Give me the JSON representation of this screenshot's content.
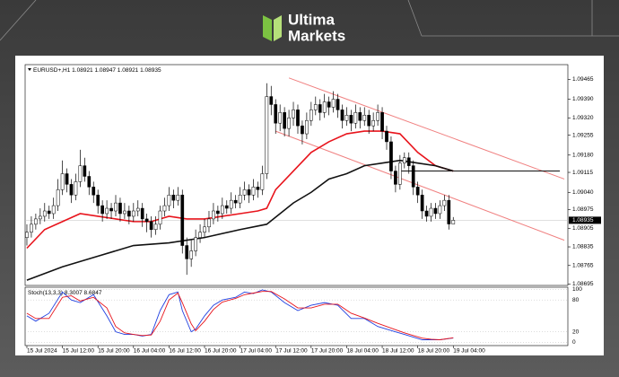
{
  "brand": {
    "line1": "Ultima",
    "line2": "Markets"
  },
  "chart_data": {
    "type": "candlestick",
    "title": "EURUSD+,H1",
    "x": [
      0,
      1,
      2,
      3,
      4,
      5,
      6,
      7,
      8,
      9,
      10,
      11,
      12,
      13,
      14,
      15,
      16,
      17,
      18,
      19,
      20,
      21,
      22,
      23,
      24,
      25,
      26,
      27,
      28,
      29,
      30,
      31,
      32,
      33,
      34,
      35,
      36,
      37,
      38,
      39,
      40,
      41,
      42,
      43,
      44,
      45,
      46,
      47,
      48,
      49,
      50,
      51,
      52,
      53,
      54,
      55,
      56,
      57,
      58,
      59,
      60,
      61,
      62,
      63,
      64,
      65,
      66,
      67,
      68,
      69,
      70,
      71,
      72,
      73,
      74,
      75,
      76,
      77,
      78,
      79,
      80,
      81,
      82,
      83,
      84,
      85,
      86,
      87,
      88,
      89,
      90,
      91,
      92,
      93,
      94,
      95,
      96
    ],
    "open": [
      1.0887,
      1.0889,
      1.0892,
      1.0894,
      1.0895,
      1.0897,
      1.0896,
      1.0899,
      1.0905,
      1.0911,
      1.0907,
      1.0903,
      1.0908,
      1.0914,
      1.091,
      1.0906,
      1.0903,
      1.0899,
      1.0896,
      1.0898,
      1.0897,
      1.09,
      1.0896,
      1.0897,
      1.0895,
      1.0897,
      1.0898,
      1.0894,
      1.0893,
      1.089,
      1.0892,
      1.0897,
      1.0899,
      1.0903,
      1.0901,
      1.0903,
      1.0884,
      1.0879,
      1.0882,
      1.0887,
      1.0889,
      1.0891,
      1.0894,
      1.0897,
      1.0896,
      1.0899,
      1.0898,
      1.0901,
      1.09,
      1.0903,
      1.0905,
      1.0903,
      1.0906,
      1.0905,
      1.0911,
      1.094,
      1.0937,
      1.093,
      1.0934,
      1.0928,
      1.0932,
      1.0935,
      1.0929,
      1.0926,
      1.0931,
      1.0935,
      1.0937,
      1.0934,
      1.0938,
      1.0936,
      1.0939,
      1.0935,
      1.0931,
      1.0933,
      1.093,
      1.0934,
      1.0931,
      1.0933,
      1.0929,
      1.0931,
      1.0934,
      1.0927,
      1.0923,
      1.0912,
      1.0907,
      1.0915,
      1.0917,
      1.0914,
      1.0906,
      1.0903,
      1.0897,
      1.0895,
      1.0898,
      1.0896,
      1.0899,
      1.0901,
      1.08921
    ],
    "high": [
      1.0892,
      1.0895,
      1.0896,
      1.0898,
      1.09,
      1.0899,
      1.0902,
      1.0909,
      1.0916,
      1.0913,
      1.0909,
      1.0911,
      1.092,
      1.0917,
      1.0912,
      1.0908,
      1.0905,
      1.0901,
      1.0901,
      1.09,
      1.0903,
      1.0902,
      1.09,
      1.0899,
      1.09,
      1.0901,
      1.09,
      1.0896,
      1.0895,
      1.0895,
      1.0899,
      1.0902,
      1.0906,
      1.0905,
      1.0906,
      1.0905,
      1.0887,
      1.0886,
      1.089,
      1.0892,
      1.0894,
      1.0897,
      1.09,
      1.0899,
      1.0902,
      1.0901,
      1.0904,
      1.0903,
      1.0906,
      1.0908,
      1.0907,
      1.0909,
      1.0908,
      1.0914,
      1.0945,
      1.0944,
      1.0939,
      1.0937,
      1.0936,
      1.0935,
      1.0938,
      1.0937,
      1.0931,
      1.0934,
      1.0938,
      1.094,
      1.0939,
      1.0941,
      1.094,
      1.0942,
      1.0941,
      1.0937,
      1.0936,
      1.0935,
      1.0937,
      1.0936,
      1.0936,
      1.0935,
      1.0934,
      1.0937,
      1.0936,
      1.0929,
      1.0925,
      1.0914,
      1.0918,
      1.0919,
      1.0919,
      1.0916,
      1.0908,
      1.0905,
      1.0899,
      1.09,
      1.09,
      1.0901,
      1.0903,
      1.0903,
      1.08947
    ],
    "low": [
      1.0884,
      1.0887,
      1.089,
      1.0892,
      1.0893,
      1.0894,
      1.0894,
      1.0897,
      1.0903,
      1.0904,
      1.09,
      1.0901,
      1.0906,
      1.0908,
      1.0903,
      1.09,
      1.0896,
      1.0893,
      1.0894,
      1.0894,
      1.0895,
      1.0893,
      1.0894,
      1.0892,
      1.0893,
      1.0895,
      1.0891,
      1.0889,
      1.0887,
      1.0888,
      1.089,
      1.0895,
      1.0897,
      1.0898,
      1.0899,
      1.0881,
      1.0873,
      1.0876,
      1.088,
      1.0885,
      1.0887,
      1.0889,
      1.0892,
      1.0893,
      1.0894,
      1.0896,
      1.0896,
      1.0898,
      1.0898,
      1.0901,
      1.09,
      1.0901,
      1.0902,
      1.0903,
      1.0909,
      1.0933,
      1.0926,
      1.0927,
      1.0925,
      1.0925,
      1.0929,
      1.0926,
      1.0922,
      1.0924,
      1.0929,
      1.0933,
      1.0931,
      1.0932,
      1.0933,
      1.0934,
      1.0932,
      1.0928,
      1.0929,
      1.0927,
      1.0928,
      1.0928,
      1.0929,
      1.0926,
      1.0927,
      1.0929,
      1.0924,
      1.092,
      1.0909,
      1.0904,
      1.0905,
      1.0913,
      1.0911,
      1.0903,
      1.09,
      1.0894,
      1.0893,
      1.0893,
      1.0894,
      1.0894,
      1.0897,
      1.089,
      1.08921
    ],
    "close": [
      1.0889,
      1.0892,
      1.0894,
      1.0895,
      1.0897,
      1.0896,
      1.0899,
      1.0905,
      1.0911,
      1.0907,
      1.0903,
      1.0908,
      1.0914,
      1.091,
      1.0906,
      1.0903,
      1.0899,
      1.0896,
      1.0898,
      1.0897,
      1.09,
      1.0896,
      1.0897,
      1.0895,
      1.0897,
      1.0898,
      1.0894,
      1.0893,
      1.089,
      1.0892,
      1.0897,
      1.0899,
      1.0903,
      1.0901,
      1.0903,
      1.0884,
      1.0879,
      1.0882,
      1.0887,
      1.0889,
      1.0891,
      1.0894,
      1.0897,
      1.0896,
      1.0899,
      1.0898,
      1.0901,
      1.09,
      1.0903,
      1.0905,
      1.0903,
      1.0906,
      1.0905,
      1.0911,
      1.094,
      1.0937,
      1.093,
      1.0934,
      1.0928,
      1.0932,
      1.0935,
      1.0929,
      1.0926,
      1.0931,
      1.0935,
      1.0937,
      1.0934,
      1.0938,
      1.0936,
      1.0939,
      1.0935,
      1.0931,
      1.0933,
      1.093,
      1.0934,
      1.0931,
      1.0933,
      1.0929,
      1.0931,
      1.0934,
      1.0927,
      1.0923,
      1.0912,
      1.0907,
      1.0915,
      1.0917,
      1.0914,
      1.0906,
      1.0903,
      1.0897,
      1.0895,
      1.0898,
      1.0896,
      1.0899,
      1.0901,
      1.08921,
      1.08935
    ],
    "overlays": [
      {
        "color": "#e8141c",
        "x": [
          0,
          4,
          8,
          12,
          16,
          20,
          24,
          28,
          32,
          36,
          40,
          44,
          48,
          52,
          54,
          56,
          60,
          64,
          68,
          72,
          76,
          80,
          84,
          88,
          92,
          96
        ],
        "values": [
          1.0883,
          1.089,
          1.0893,
          1.0896,
          1.0895,
          1.0894,
          1.0893,
          1.0893,
          1.0895,
          1.0894,
          1.0894,
          1.0895,
          1.0896,
          1.0897,
          1.0898,
          1.0905,
          1.0912,
          1.0919,
          1.0923,
          1.0926,
          1.0927,
          1.0927,
          1.0926,
          1.0919,
          1.0914,
          1.0912
        ]
      },
      {
        "color": "#111111",
        "x": [
          0,
          8,
          16,
          24,
          32,
          40,
          48,
          54,
          60,
          64,
          68,
          72,
          76,
          80,
          84,
          88,
          92,
          96
        ],
        "values": [
          1.0871,
          1.0876,
          1.088,
          1.0884,
          1.0885,
          1.0887,
          1.089,
          1.0892,
          1.09,
          1.0904,
          1.0909,
          1.0911,
          1.0914,
          1.0915,
          1.0916,
          1.0915,
          1.0914,
          1.0912
        ]
      }
    ],
    "lines": [
      {
        "color": "#f08080",
        "x": [
          59,
          121
        ],
        "values": [
          1.0947,
          1.0909
        ]
      },
      {
        "color": "#f08080",
        "x": [
          56,
          121
        ],
        "values": [
          1.0927,
          1.0886
        ]
      },
      {
        "color": "#111111",
        "x": [
          84,
          120
        ],
        "values": [
          1.0912,
          1.0912
        ]
      }
    ],
    "up_color": "#ffffff",
    "down_color": "#000000",
    "xlim": [
      -0.4,
      121.8
    ],
    "ylim": [
      1.0869,
      1.0952
    ],
    "yticks": [
      1.09465,
      {
        "value": 1.0939,
        "label": "1.09390"
      },
      {
        "value": 1.0932,
        "label": "1.09320"
      },
      1.09255,
      {
        "value": 1.0918,
        "label": "1.09180"
      },
      1.09115,
      {
        "value": 1.0904,
        "label": "1.09040"
      },
      1.08975,
      1.08905,
      1.08835,
      1.08765,
      1.08695
    ],
    "xticks": [
      {
        "value": 0,
        "label": "15 Jul 2024"
      },
      {
        "value": 8,
        "label": "15 Jul 12:00"
      },
      {
        "value": 16,
        "label": "15 Jul 20:00"
      },
      {
        "value": 24,
        "label": "16 Jul 04:00"
      },
      {
        "value": 32,
        "label": "16 Jul 12:00"
      },
      {
        "value": 40,
        "label": "16 Jul 20:00"
      },
      {
        "value": 48,
        "label": "17 Jul 04:00"
      },
      {
        "value": 56,
        "label": "17 Jul 12:00"
      },
      {
        "value": 64,
        "label": "17 Jul 20:00"
      },
      {
        "value": 72,
        "label": "18 Jul 04:00"
      },
      {
        "value": 80,
        "label": "18 Jul 12:00"
      },
      {
        "value": 88,
        "label": "18 Jul 20:00"
      },
      {
        "value": 96,
        "label": "19 Jul 04:00"
      }
    ],
    "grid": false,
    "indicator": {
      "title": "Stoch(13,3,3)",
      "x": [
        0,
        2,
        5,
        8,
        10,
        12,
        15,
        18,
        20,
        22,
        24,
        26,
        28,
        30,
        32,
        34,
        35,
        37,
        38,
        40,
        42,
        44,
        47,
        49,
        51,
        53,
        55,
        58,
        61,
        64,
        67,
        70,
        73,
        76,
        79,
        83,
        85,
        87,
        89,
        91,
        93,
        96
      ],
      "series": [
        {
          "color": "#2040e0",
          "values": [
            50,
            40,
            55,
            95,
            80,
            75,
            90,
            50,
            20,
            15,
            15,
            12,
            15,
            60,
            90,
            95,
            60,
            20,
            25,
            50,
            70,
            80,
            85,
            95,
            92,
            99,
            95,
            75,
            60,
            70,
            75,
            70,
            45,
            45,
            30,
            20,
            15,
            10,
            5,
            5,
            5,
            8.3007
          ]
        },
        {
          "color": "#e8141c",
          "values": [
            55,
            45,
            45,
            85,
            88,
            78,
            85,
            65,
            30,
            18,
            15,
            13,
            14,
            40,
            80,
            93,
            75,
            35,
            22,
            40,
            62,
            76,
            83,
            90,
            93,
            96,
            96,
            82,
            65,
            65,
            72,
            72,
            55,
            46,
            36,
            24,
            18,
            13,
            8,
            6,
            5,
            8.6847
          ]
        }
      ],
      "ylim": [
        -6,
        104
      ],
      "yticks": [
        0,
        20,
        80,
        100
      ],
      "grid": true
    }
  }
}
